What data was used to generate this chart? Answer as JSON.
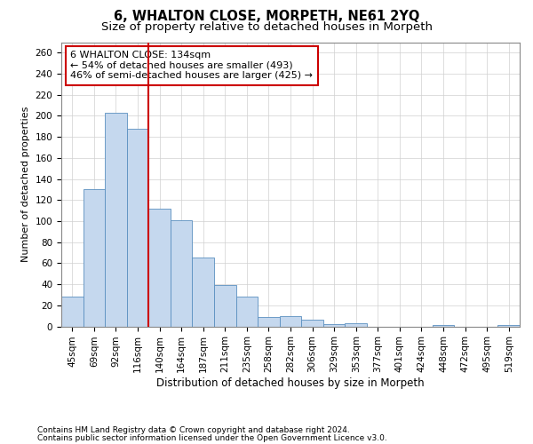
{
  "title": "6, WHALTON CLOSE, MORPETH, NE61 2YQ",
  "subtitle": "Size of property relative to detached houses in Morpeth",
  "xlabel": "Distribution of detached houses by size in Morpeth",
  "ylabel": "Number of detached properties",
  "categories": [
    "45sqm",
    "69sqm",
    "92sqm",
    "116sqm",
    "140sqm",
    "164sqm",
    "187sqm",
    "211sqm",
    "235sqm",
    "258sqm",
    "282sqm",
    "306sqm",
    "329sqm",
    "353sqm",
    "377sqm",
    "401sqm",
    "424sqm",
    "448sqm",
    "472sqm",
    "495sqm",
    "519sqm"
  ],
  "values": [
    28,
    130,
    203,
    188,
    112,
    101,
    65,
    39,
    28,
    9,
    10,
    6,
    2,
    3,
    0,
    0,
    0,
    1,
    0,
    0,
    1
  ],
  "bar_color": "#c5d8ee",
  "bar_edge_color": "#5a8fc0",
  "vline_color": "#cc0000",
  "annotation_text": "6 WHALTON CLOSE: 134sqm\n← 54% of detached houses are smaller (493)\n46% of semi-detached houses are larger (425) →",
  "annotation_box_color": "white",
  "annotation_box_edge_color": "#cc0000",
  "ylim": [
    0,
    270
  ],
  "yticks": [
    0,
    20,
    40,
    60,
    80,
    100,
    120,
    140,
    160,
    180,
    200,
    220,
    240,
    260
  ],
  "grid_color": "#d0d0d0",
  "background_color": "white",
  "footer_line1": "Contains HM Land Registry data © Crown copyright and database right 2024.",
  "footer_line2": "Contains public sector information licensed under the Open Government Licence v3.0.",
  "title_fontsize": 10.5,
  "subtitle_fontsize": 9.5,
  "xlabel_fontsize": 8.5,
  "ylabel_fontsize": 8,
  "tick_fontsize": 7.5,
  "annot_fontsize": 8,
  "footer_fontsize": 6.5
}
